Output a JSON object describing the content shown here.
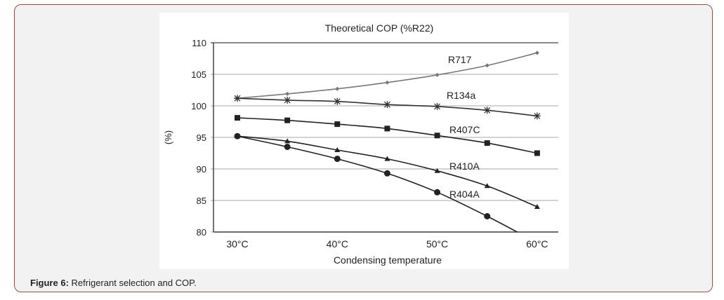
{
  "caption": {
    "label": "Figure 6:",
    "text": " Refrigerant selection and COP."
  },
  "chart_data": {
    "type": "line",
    "title": "Theoretical COP (%R22)",
    "xlabel": "Condensing temperature",
    "ylabel": "(%)",
    "x": [
      30,
      35,
      40,
      45,
      50,
      55,
      60
    ],
    "xticks": [
      30,
      40,
      50,
      60
    ],
    "xtick_labels": [
      "30°C",
      "40°C",
      "50°C",
      "60°C"
    ],
    "yticks": [
      80,
      85,
      90,
      95,
      100,
      105,
      110
    ],
    "ytick_labels": [
      "80",
      "85",
      "90",
      "95",
      "100",
      "105",
      "110"
    ],
    "xlim": [
      27.6,
      62.2
    ],
    "ylim": [
      80,
      110
    ],
    "grid": "horizontal",
    "legend": "inline labels",
    "series": [
      {
        "name": "R717",
        "marker": "diamond",
        "color": "#777777",
        "values": [
          101.2,
          101.9,
          102.7,
          103.7,
          104.9,
          106.4,
          108.4
        ]
      },
      {
        "name": "R134a",
        "marker": "asterisk",
        "color": "#333333",
        "values": [
          101.2,
          100.9,
          100.7,
          100.2,
          99.9,
          99.3,
          98.4
        ]
      },
      {
        "name": "R407C",
        "marker": "square",
        "color": "#222222",
        "values": [
          98.1,
          97.7,
          97.1,
          96.4,
          95.3,
          94.1,
          92.5
        ]
      },
      {
        "name": "R410A",
        "marker": "triangle",
        "color": "#222222",
        "values": [
          95.2,
          94.4,
          93.0,
          91.6,
          89.7,
          87.3,
          84.0
        ]
      },
      {
        "name": "R404A",
        "marker": "circle",
        "color": "#222222",
        "values": [
          95.2,
          93.5,
          91.6,
          89.3,
          86.3,
          82.5,
          78.3
        ]
      }
    ]
  }
}
